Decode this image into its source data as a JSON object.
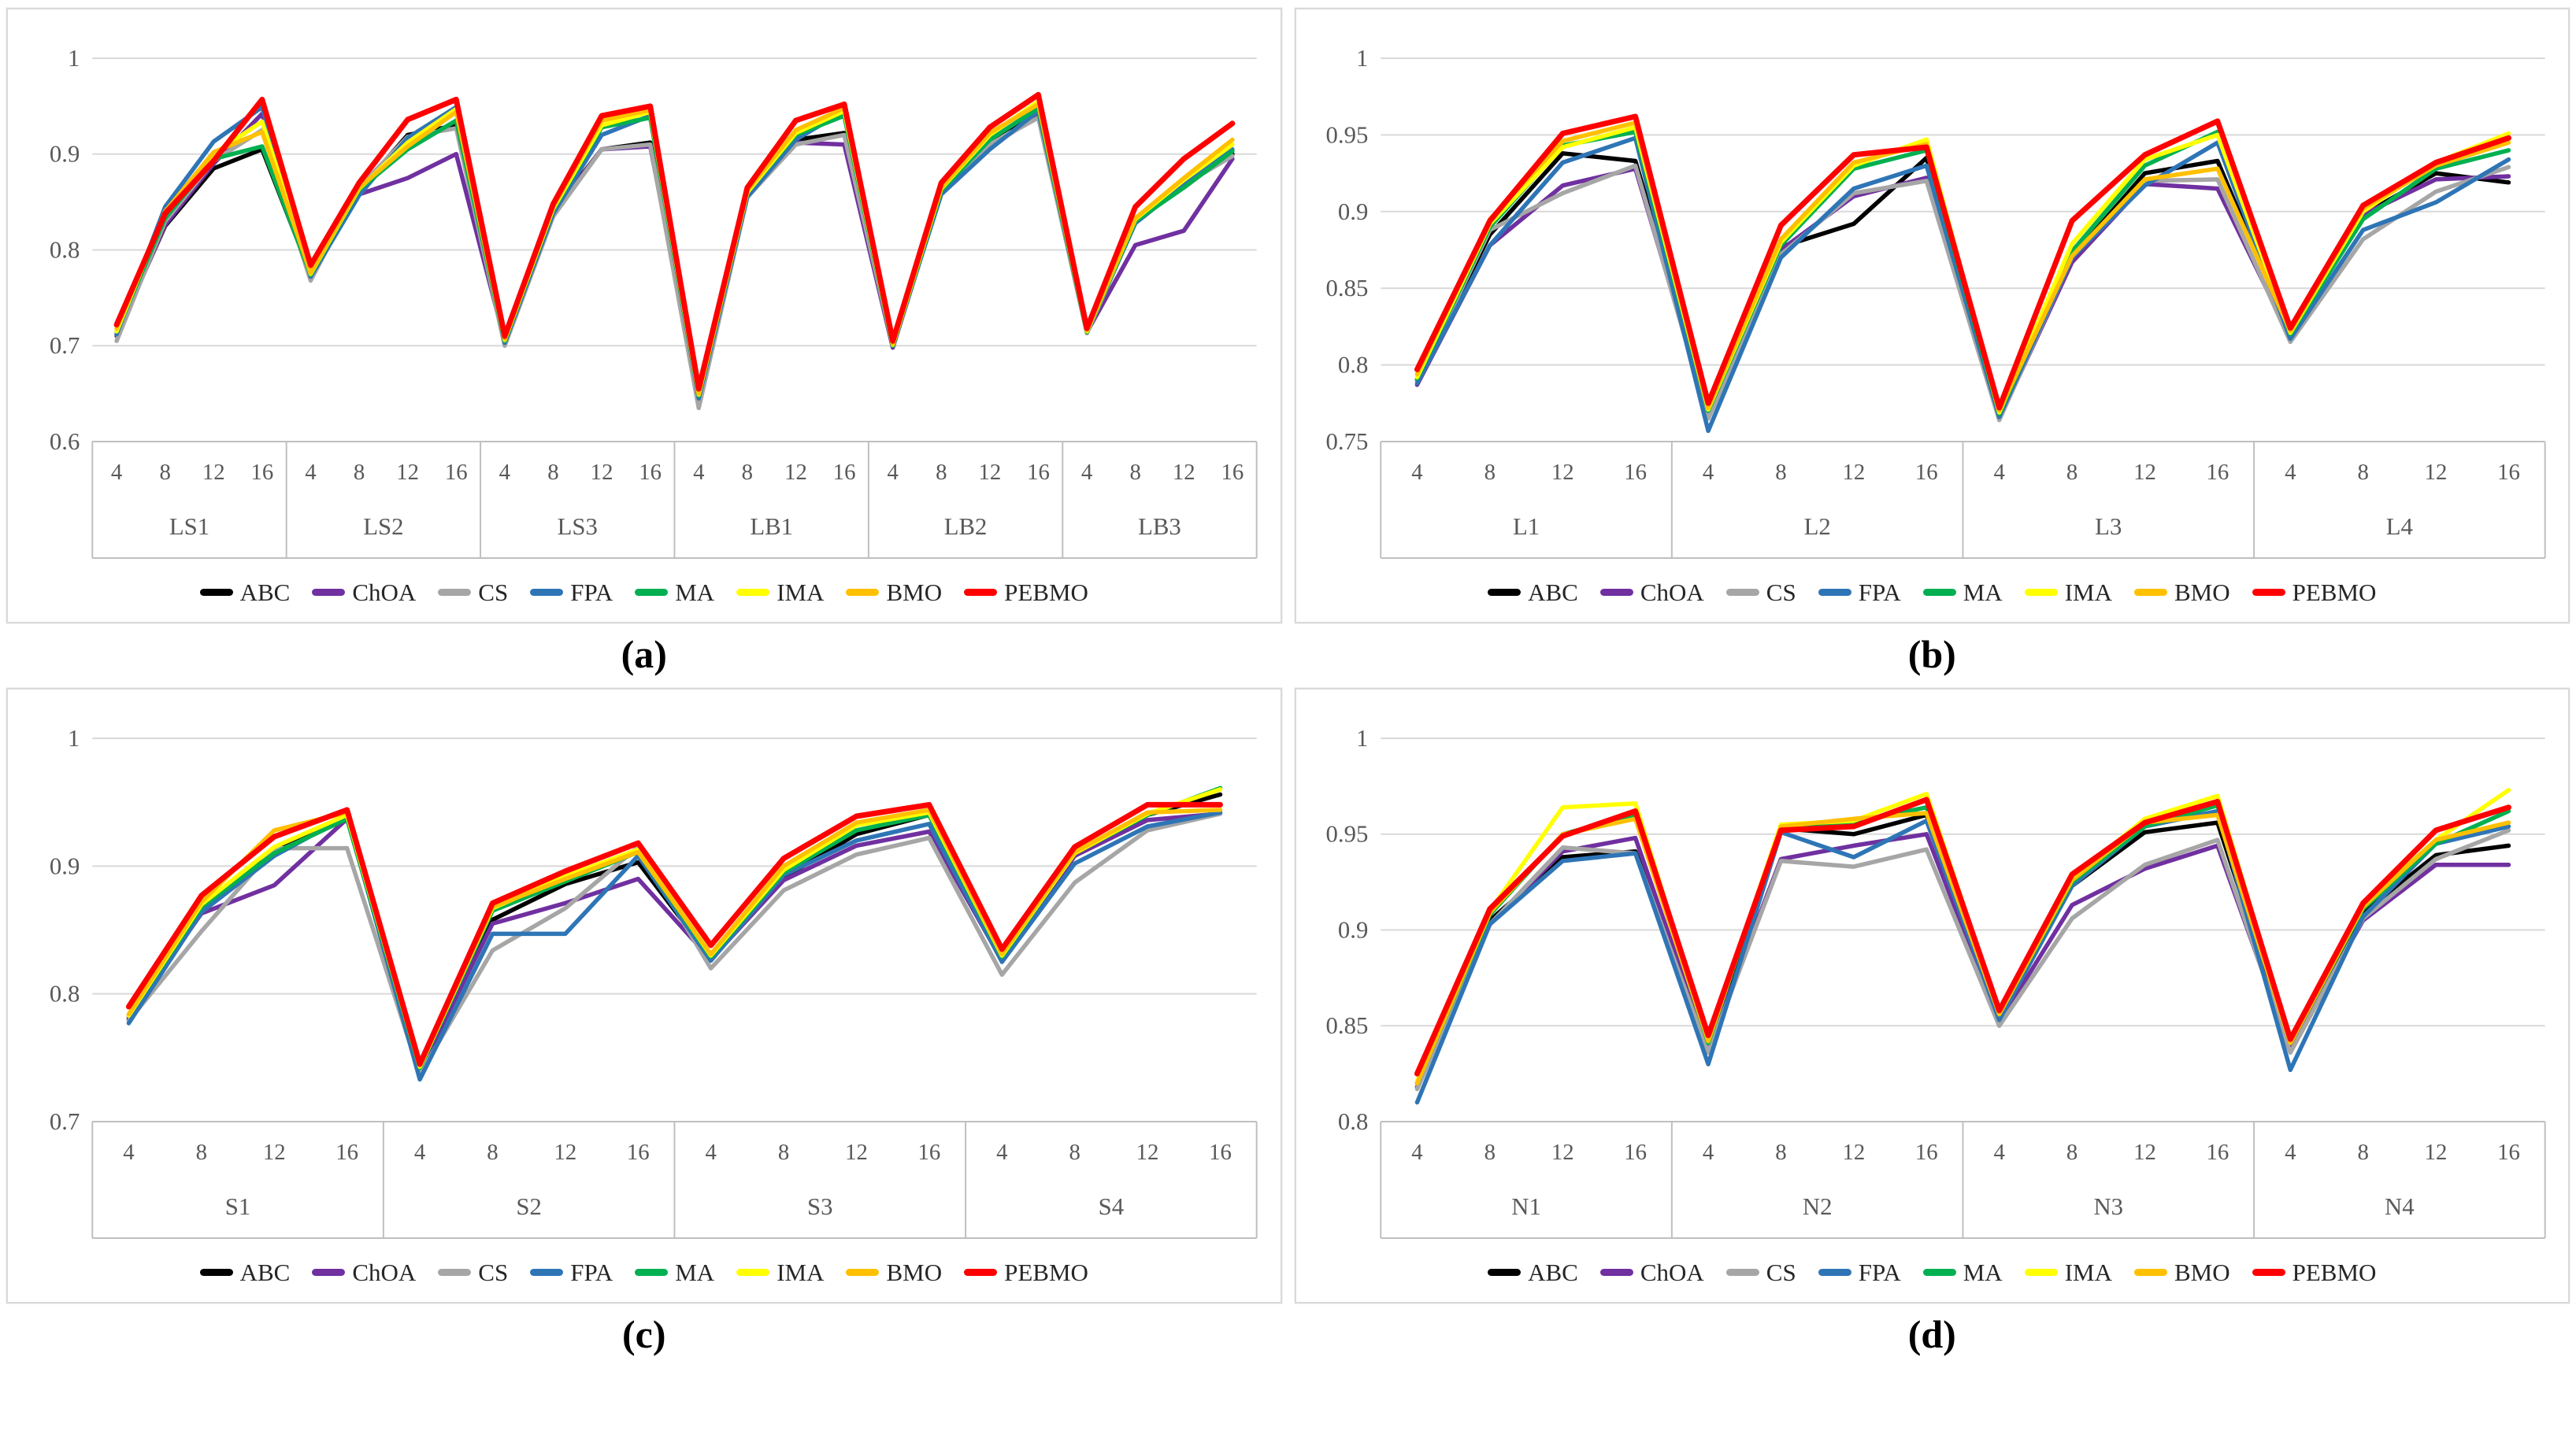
{
  "page": {
    "background": "#ffffff",
    "grid_color": "#d9d9d9",
    "axis_border_color": "#bfbfbf",
    "tick_label_color": "#595959"
  },
  "legend": {
    "position": "bottom",
    "items": [
      {
        "label": "ABC",
        "color": "#000000"
      },
      {
        "label": "ChOA",
        "color": "#7030A0"
      },
      {
        "label": "CS",
        "color": "#A6A6A6"
      },
      {
        "label": "FPA",
        "color": "#2E75B6"
      },
      {
        "label": "MA",
        "color": "#00B050"
      },
      {
        "label": "IMA",
        "color": "#FFFF00"
      },
      {
        "label": "BMO",
        "color": "#FFC000"
      },
      {
        "label": "PEBMO",
        "color": "#FF0000"
      }
    ]
  },
  "chart_data": [
    {
      "id": "a",
      "caption": "(a)",
      "type": "line",
      "grid": "horizontal",
      "legend_position": "bottom",
      "ylim": [
        0.6,
        1.0
      ],
      "yticks": [
        1,
        0.9,
        0.8,
        0.7,
        0.6
      ],
      "groups": [
        "LS1",
        "LS2",
        "LS3",
        "LB1",
        "LB2",
        "LB3"
      ],
      "ticks": [
        "4",
        "8",
        "12",
        "16"
      ],
      "series": [
        {
          "name": "ABC",
          "color": "#000000",
          "width": 5.5,
          "values": [
            0.712,
            0.825,
            0.885,
            0.905,
            0.775,
            0.862,
            0.92,
            0.93,
            0.706,
            0.84,
            0.905,
            0.912,
            0.65,
            0.862,
            0.915,
            0.922,
            0.7,
            0.868,
            0.915,
            0.945,
            0.716,
            0.83,
            0.87,
            0.9
          ]
        },
        {
          "name": "ChOA",
          "color": "#7030A0",
          "width": 5.5,
          "values": [
            0.71,
            0.826,
            0.89,
            0.942,
            0.773,
            0.858,
            0.875,
            0.9,
            0.705,
            0.838,
            0.905,
            0.908,
            0.648,
            0.858,
            0.912,
            0.91,
            0.698,
            0.86,
            0.908,
            0.94,
            0.714,
            0.805,
            0.82,
            0.895
          ]
        },
        {
          "name": "CS",
          "color": "#A6A6A6",
          "width": 5.5,
          "values": [
            0.705,
            0.83,
            0.893,
            0.925,
            0.768,
            0.865,
            0.918,
            0.927,
            0.7,
            0.835,
            0.905,
            0.91,
            0.635,
            0.855,
            0.91,
            0.92,
            0.7,
            0.865,
            0.91,
            0.938,
            0.713,
            0.828,
            0.868,
            0.898
          ]
        },
        {
          "name": "FPA",
          "color": "#2E75B6",
          "width": 5.5,
          "values": [
            0.712,
            0.845,
            0.913,
            0.949,
            0.772,
            0.857,
            0.917,
            0.949,
            0.703,
            0.838,
            0.92,
            0.94,
            0.645,
            0.855,
            0.915,
            0.945,
            0.7,
            0.858,
            0.905,
            0.945,
            0.715,
            0.828,
            0.868,
            0.905
          ]
        },
        {
          "name": "MA",
          "color": "#00B050",
          "width": 5.5,
          "values": [
            0.715,
            0.833,
            0.895,
            0.908,
            0.774,
            0.863,
            0.905,
            0.935,
            0.705,
            0.842,
            0.928,
            0.938,
            0.648,
            0.86,
            0.92,
            0.94,
            0.7,
            0.862,
            0.915,
            0.948,
            0.714,
            0.83,
            0.865,
            0.903
          ]
        },
        {
          "name": "IMA",
          "color": "#FFFF00",
          "width": 5.5,
          "values": [
            0.715,
            0.84,
            0.9,
            0.934,
            0.775,
            0.864,
            0.912,
            0.947,
            0.706,
            0.843,
            0.93,
            0.944,
            0.649,
            0.86,
            0.922,
            0.945,
            0.701,
            0.864,
            0.92,
            0.955,
            0.715,
            0.832,
            0.873,
            0.91
          ]
        },
        {
          "name": "BMO",
          "color": "#FFC000",
          "width": 5.5,
          "values": [
            0.718,
            0.84,
            0.902,
            0.923,
            0.776,
            0.865,
            0.908,
            0.944,
            0.707,
            0.845,
            0.935,
            0.946,
            0.65,
            0.862,
            0.925,
            0.948,
            0.702,
            0.865,
            0.922,
            0.952,
            0.716,
            0.833,
            0.875,
            0.915
          ]
        },
        {
          "name": "PEBMO",
          "color": "#FF0000",
          "width": 7,
          "values": [
            0.722,
            0.838,
            0.893,
            0.957,
            0.784,
            0.87,
            0.936,
            0.957,
            0.71,
            0.848,
            0.94,
            0.95,
            0.655,
            0.865,
            0.935,
            0.952,
            0.705,
            0.87,
            0.928,
            0.962,
            0.718,
            0.845,
            0.895,
            0.932
          ]
        }
      ]
    },
    {
      "id": "b",
      "caption": "(b)",
      "type": "line",
      "grid": "horizontal",
      "legend_position": "bottom",
      "ylim": [
        0.75,
        1.0
      ],
      "yticks": [
        1,
        0.95,
        0.9,
        0.85,
        0.8,
        0.75
      ],
      "groups": [
        "L1",
        "L2",
        "L3",
        "L4"
      ],
      "ticks": [
        "4",
        "8",
        "12",
        "16"
      ],
      "series": [
        {
          "name": "ABC",
          "color": "#000000",
          "width": 5.5,
          "values": [
            0.79,
            0.885,
            0.938,
            0.933,
            0.77,
            0.877,
            0.892,
            0.935,
            0.767,
            0.87,
            0.925,
            0.933,
            0.82,
            0.898,
            0.925,
            0.919
          ]
        },
        {
          "name": "ChOA",
          "color": "#7030A0",
          "width": 5.5,
          "values": [
            0.787,
            0.878,
            0.917,
            0.928,
            0.768,
            0.875,
            0.91,
            0.922,
            0.765,
            0.867,
            0.918,
            0.915,
            0.818,
            0.898,
            0.921,
            0.923
          ]
        },
        {
          "name": "CS",
          "color": "#A6A6A6",
          "width": 5.5,
          "values": [
            0.789,
            0.888,
            0.912,
            0.93,
            0.765,
            0.872,
            0.912,
            0.92,
            0.764,
            0.87,
            0.92,
            0.921,
            0.815,
            0.882,
            0.913,
            0.929
          ]
        },
        {
          "name": "FPA",
          "color": "#2E75B6",
          "width": 5.5,
          "values": [
            0.788,
            0.878,
            0.932,
            0.948,
            0.757,
            0.87,
            0.915,
            0.93,
            0.766,
            0.87,
            0.917,
            0.945,
            0.817,
            0.888,
            0.906,
            0.934
          ]
        },
        {
          "name": "MA",
          "color": "#00B050",
          "width": 5.5,
          "values": [
            0.791,
            0.89,
            0.943,
            0.952,
            0.77,
            0.878,
            0.928,
            0.94,
            0.768,
            0.874,
            0.93,
            0.952,
            0.82,
            0.895,
            0.928,
            0.94
          ]
        },
        {
          "name": "IMA",
          "color": "#FFFF00",
          "width": 5.5,
          "values": [
            0.792,
            0.892,
            0.942,
            0.955,
            0.771,
            0.88,
            0.93,
            0.947,
            0.769,
            0.879,
            0.934,
            0.95,
            0.821,
            0.9,
            0.932,
            0.951
          ]
        },
        {
          "name": "BMO",
          "color": "#FFC000",
          "width": 5.5,
          "values": [
            0.794,
            0.895,
            0.946,
            0.958,
            0.772,
            0.882,
            0.932,
            0.944,
            0.77,
            0.871,
            0.921,
            0.928,
            0.822,
            0.902,
            0.93,
            0.945
          ]
        },
        {
          "name": "PEBMO",
          "color": "#FF0000",
          "width": 7,
          "values": [
            0.797,
            0.894,
            0.951,
            0.962,
            0.775,
            0.891,
            0.937,
            0.942,
            0.772,
            0.894,
            0.937,
            0.959,
            0.824,
            0.904,
            0.932,
            0.948
          ]
        }
      ]
    },
    {
      "id": "c",
      "caption": "(c)",
      "type": "line",
      "grid": "horizontal",
      "legend_position": "bottom",
      "ylim": [
        0.7,
        1.0
      ],
      "yticks": [
        1,
        0.9,
        0.8,
        0.7
      ],
      "groups": [
        "S1",
        "S2",
        "S3",
        "S4"
      ],
      "ticks": [
        "4",
        "8",
        "12",
        "16"
      ],
      "series": [
        {
          "name": "ABC",
          "color": "#000000",
          "width": 5.5,
          "values": [
            0.78,
            0.865,
            0.914,
            0.94,
            0.741,
            0.858,
            0.886,
            0.903,
            0.828,
            0.891,
            0.925,
            0.94,
            0.828,
            0.908,
            0.94,
            0.956
          ]
        },
        {
          "name": "ChOA",
          "color": "#7030A0",
          "width": 5.5,
          "values": [
            0.782,
            0.863,
            0.885,
            0.937,
            0.74,
            0.855,
            0.871,
            0.89,
            0.827,
            0.889,
            0.916,
            0.927,
            0.826,
            0.908,
            0.936,
            0.941
          ]
        },
        {
          "name": "CS",
          "color": "#A6A6A6",
          "width": 5.5,
          "values": [
            0.779,
            0.849,
            0.914,
            0.914,
            0.737,
            0.834,
            0.867,
            0.915,
            0.82,
            0.881,
            0.909,
            0.922,
            0.815,
            0.887,
            0.928,
            0.941
          ]
        },
        {
          "name": "FPA",
          "color": "#2E75B6",
          "width": 5.5,
          "values": [
            0.777,
            0.864,
            0.908,
            0.939,
            0.733,
            0.847,
            0.847,
            0.908,
            0.826,
            0.893,
            0.92,
            0.933,
            0.825,
            0.902,
            0.931,
            0.942
          ]
        },
        {
          "name": "MA",
          "color": "#00B050",
          "width": 5.5,
          "values": [
            0.783,
            0.868,
            0.91,
            0.937,
            0.742,
            0.865,
            0.888,
            0.911,
            0.829,
            0.895,
            0.928,
            0.94,
            0.829,
            0.91,
            0.94,
            0.961
          ]
        },
        {
          "name": "IMA",
          "color": "#FFFF00",
          "width": 5.5,
          "values": [
            0.783,
            0.87,
            0.915,
            0.94,
            0.743,
            0.867,
            0.892,
            0.913,
            0.83,
            0.897,
            0.932,
            0.942,
            0.83,
            0.91,
            0.941,
            0.96
          ]
        },
        {
          "name": "BMO",
          "color": "#FFC000",
          "width": 5.5,
          "values": [
            0.784,
            0.872,
            0.928,
            0.942,
            0.744,
            0.868,
            0.89,
            0.911,
            0.831,
            0.9,
            0.934,
            0.944,
            0.831,
            0.911,
            0.942,
            0.944
          ]
        },
        {
          "name": "PEBMO",
          "color": "#FF0000",
          "width": 7,
          "values": [
            0.79,
            0.877,
            0.923,
            0.944,
            0.745,
            0.871,
            0.896,
            0.918,
            0.838,
            0.906,
            0.939,
            0.948,
            0.835,
            0.915,
            0.948,
            0.948
          ]
        }
      ]
    },
    {
      "id": "d",
      "caption": "(d)",
      "type": "line",
      "grid": "horizontal",
      "legend_position": "bottom",
      "ylim": [
        0.8,
        1.0
      ],
      "yticks": [
        1,
        0.95,
        0.9,
        0.85,
        0.8
      ],
      "groups": [
        "N1",
        "N2",
        "N3",
        "N4"
      ],
      "ticks": [
        "4",
        "8",
        "12",
        "16"
      ],
      "series": [
        {
          "name": "ABC",
          "color": "#000000",
          "width": 5.5,
          "values": [
            0.82,
            0.905,
            0.938,
            0.941,
            0.84,
            0.953,
            0.95,
            0.96,
            0.855,
            0.923,
            0.951,
            0.956,
            0.84,
            0.909,
            0.939,
            0.944
          ]
        },
        {
          "name": "ChOA",
          "color": "#7030A0",
          "width": 5.5,
          "values": [
            0.818,
            0.903,
            0.941,
            0.948,
            0.838,
            0.937,
            0.944,
            0.95,
            0.852,
            0.913,
            0.932,
            0.944,
            0.838,
            0.905,
            0.934,
            0.934
          ]
        },
        {
          "name": "CS",
          "color": "#A6A6A6",
          "width": 5.5,
          "values": [
            0.817,
            0.903,
            0.943,
            0.94,
            0.836,
            0.936,
            0.933,
            0.942,
            0.85,
            0.906,
            0.934,
            0.947,
            0.836,
            0.906,
            0.937,
            0.952
          ]
        },
        {
          "name": "FPA",
          "color": "#2E75B6",
          "width": 5.5,
          "values": [
            0.81,
            0.903,
            0.936,
            0.94,
            0.83,
            0.951,
            0.938,
            0.957,
            0.853,
            0.923,
            0.954,
            0.962,
            0.827,
            0.907,
            0.945,
            0.954
          ]
        },
        {
          "name": "MA",
          "color": "#00B050",
          "width": 5.5,
          "values": [
            0.82,
            0.908,
            0.95,
            0.96,
            0.841,
            0.954,
            0.956,
            0.964,
            0.856,
            0.925,
            0.954,
            0.965,
            0.841,
            0.911,
            0.945,
            0.962
          ]
        },
        {
          "name": "IMA",
          "color": "#FFFF00",
          "width": 5.5,
          "values": [
            0.821,
            0.91,
            0.964,
            0.966,
            0.842,
            0.955,
            0.957,
            0.971,
            0.857,
            0.927,
            0.958,
            0.97,
            0.842,
            0.913,
            0.947,
            0.973
          ]
        },
        {
          "name": "BMO",
          "color": "#FFC000",
          "width": 5.5,
          "values": [
            0.82,
            0.909,
            0.95,
            0.958,
            0.842,
            0.954,
            0.958,
            0.961,
            0.856,
            0.926,
            0.956,
            0.96,
            0.841,
            0.912,
            0.947,
            0.956
          ]
        },
        {
          "name": "PEBMO",
          "color": "#FF0000",
          "width": 7,
          "values": [
            0.825,
            0.911,
            0.949,
            0.962,
            0.845,
            0.952,
            0.954,
            0.968,
            0.858,
            0.929,
            0.956,
            0.967,
            0.843,
            0.914,
            0.952,
            0.964
          ]
        }
      ]
    }
  ]
}
